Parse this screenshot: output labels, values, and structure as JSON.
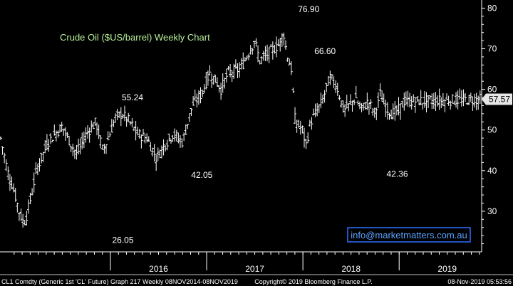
{
  "chart_data": {
    "type": "bar",
    "style": "ohlc-weekly",
    "title": "Crude Oil ($US/barrel) Weekly Chart",
    "xlabel": "",
    "ylabel": "",
    "ylim": [
      20,
      82
    ],
    "y_ticks": [
      "30",
      "40",
      "50",
      "60",
      "70",
      "80"
    ],
    "y_tick_values": [
      30,
      40,
      50,
      60,
      70,
      80
    ],
    "x_ticks": [
      "2016",
      "2017",
      "2018",
      "2019"
    ],
    "x_year_boundaries": [
      2016,
      2017,
      2018,
      2019,
      2020
    ],
    "x_range": [
      2014.853,
      2019.857
    ],
    "grid": false,
    "last_price": "57.57",
    "last_price_value": 57.57,
    "annotations": [
      {
        "text": "76.90",
        "x": 2018.06,
        "y": 76.9,
        "position": "above"
      },
      {
        "text": "66.60",
        "x": 2018.23,
        "y": 66.6,
        "position": "above"
      },
      {
        "text": "55.24",
        "x": 2016.23,
        "y": 55.24,
        "position": "above"
      },
      {
        "text": "42.05",
        "x": 2016.95,
        "y": 42.05,
        "position": "below"
      },
      {
        "text": "42.36",
        "x": 2018.98,
        "y": 42.36,
        "position": "below"
      },
      {
        "text": "26.05",
        "x": 2016.13,
        "y": 26.05,
        "position": "below"
      }
    ],
    "anchors": [
      [
        2014.86,
        48
      ],
      [
        2014.93,
        40
      ],
      [
        2015.0,
        35
      ],
      [
        2015.05,
        30
      ],
      [
        2015.1,
        27
      ],
      [
        2015.13,
        29
      ],
      [
        2015.18,
        34
      ],
      [
        2015.23,
        40
      ],
      [
        2015.35,
        47
      ],
      [
        2015.5,
        51
      ],
      [
        2015.58,
        47
      ],
      [
        2015.65,
        44
      ],
      [
        2015.75,
        49
      ],
      [
        2015.85,
        52
      ],
      [
        2015.92,
        45
      ],
      [
        2015.98,
        48
      ],
      [
        2016.05,
        53
      ],
      [
        2016.12,
        54
      ],
      [
        2016.2,
        52
      ],
      [
        2016.28,
        49
      ],
      [
        2016.38,
        48
      ],
      [
        2016.48,
        43
      ],
      [
        2016.55,
        46
      ],
      [
        2016.65,
        49
      ],
      [
        2016.75,
        47
      ],
      [
        2016.85,
        56
      ],
      [
        2016.95,
        59
      ],
      [
        2017.03,
        64
      ],
      [
        2017.1,
        62
      ],
      [
        2017.15,
        60
      ],
      [
        2017.22,
        64
      ],
      [
        2017.35,
        65
      ],
      [
        2017.5,
        72
      ],
      [
        2017.55,
        67
      ],
      [
        2017.65,
        69
      ],
      [
        2017.75,
        71
      ],
      [
        2017.8,
        74
      ],
      [
        2017.83,
        69
      ],
      [
        2017.88,
        65
      ],
      [
        2017.92,
        52
      ],
      [
        2018.0,
        50
      ],
      [
        2018.03,
        46
      ],
      [
        2018.08,
        52
      ],
      [
        2018.13,
        54
      ],
      [
        2018.2,
        57
      ],
      [
        2018.28,
        63
      ],
      [
        2018.35,
        61
      ],
      [
        2018.42,
        55
      ],
      [
        2018.48,
        56
      ],
      [
        2018.55,
        58
      ],
      [
        2018.6,
        55
      ],
      [
        2018.68,
        57
      ],
      [
        2018.75,
        54
      ],
      [
        2018.8,
        59
      ],
      [
        2018.85,
        56
      ],
      [
        2018.92,
        54
      ],
      [
        2019.0,
        55
      ],
      [
        2019.05,
        57
      ],
      [
        2019.857,
        57.57
      ]
    ]
  },
  "watermark": "info@marketmatters.com.au",
  "footer": {
    "left": "CL1 Comdty (Generic 1st 'CL' Future) Graph 217  Weekly 08NOV2014-08NOV2019",
    "center": "Copyright© 2019 Bloomberg Finance L.P.",
    "right": "08-Nov-2019 05:53:56"
  },
  "colors": {
    "background": "#000000",
    "bars": "#ffffff",
    "axis": "#ffffff",
    "title": "#b8f09a",
    "price_tag_bg": "#e6e6e6",
    "watermark_border": "#2f6fff",
    "watermark_text": "#5aa3ff"
  }
}
